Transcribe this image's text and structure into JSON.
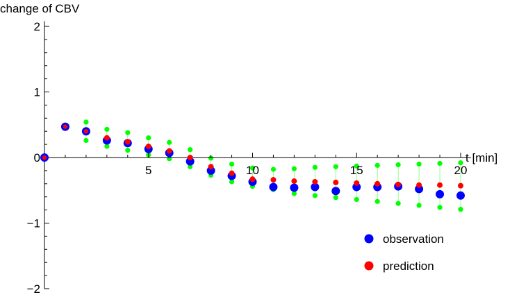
{
  "chart_data": {
    "type": "scatter",
    "ylabel": "change of CBV",
    "xlabel": "t [min]",
    "xlim": [
      0,
      20.5
    ],
    "ylim": [
      -2,
      2
    ],
    "xticks_major": [
      5,
      10,
      15,
      20
    ],
    "xtick_labels": [
      "5",
      "10",
      "15",
      "20"
    ],
    "yticks_major": [
      -2,
      -1,
      0,
      1,
      2
    ],
    "ytick_labels": [
      "−2",
      "−1",
      "0",
      "1",
      "2"
    ],
    "grid": false,
    "legend_position": "bottom-right",
    "legend": [
      {
        "label": "observation",
        "color": "#0000ff"
      },
      {
        "label": "prediction",
        "color": "#ff0000"
      }
    ],
    "series": [
      {
        "name": "observation",
        "color": "#0000ff",
        "x": [
          0,
          1,
          2,
          3,
          4,
          5,
          6,
          7,
          8,
          9,
          10,
          11,
          12,
          13,
          14,
          15,
          16,
          17,
          18,
          19,
          20
        ],
        "y": [
          0,
          0.47,
          0.4,
          0.26,
          0.22,
          0.13,
          0.07,
          -0.06,
          -0.2,
          -0.28,
          -0.37,
          -0.45,
          -0.46,
          -0.45,
          -0.51,
          -0.45,
          -0.45,
          -0.44,
          -0.48,
          -0.56,
          -0.58
        ]
      },
      {
        "name": "prediction",
        "color": "#ff0000",
        "x": [
          0,
          1,
          2,
          3,
          4,
          5,
          6,
          7,
          8,
          9,
          10,
          11,
          12,
          13,
          14,
          15,
          16,
          17,
          18,
          19,
          20
        ],
        "y": [
          0,
          0.47,
          0.4,
          0.3,
          0.24,
          0.17,
          0.1,
          0.0,
          -0.14,
          -0.24,
          -0.33,
          -0.34,
          -0.36,
          -0.37,
          -0.38,
          -0.39,
          -0.4,
          -0.41,
          -0.42,
          -0.42,
          -0.43
        ]
      }
    ],
    "bounds": {
      "color": "#00ff00",
      "x": [
        0,
        1,
        2,
        3,
        4,
        5,
        6,
        7,
        8,
        9,
        10,
        11,
        12,
        13,
        14,
        15,
        16,
        17,
        18,
        19,
        20
      ],
      "upper": [
        0,
        0.47,
        0.54,
        0.43,
        0.38,
        0.3,
        0.23,
        0.12,
        -0.01,
        -0.1,
        -0.16,
        -0.18,
        -0.17,
        -0.15,
        -0.14,
        -0.13,
        -0.12,
        -0.11,
        -0.1,
        -0.09,
        -0.08
      ],
      "lower": [
        0,
        0.47,
        0.26,
        0.17,
        0.11,
        0.04,
        -0.02,
        -0.14,
        -0.27,
        -0.37,
        -0.44,
        -0.49,
        -0.55,
        -0.58,
        -0.61,
        -0.64,
        -0.67,
        -0.7,
        -0.73,
        -0.76,
        -0.79
      ]
    }
  }
}
